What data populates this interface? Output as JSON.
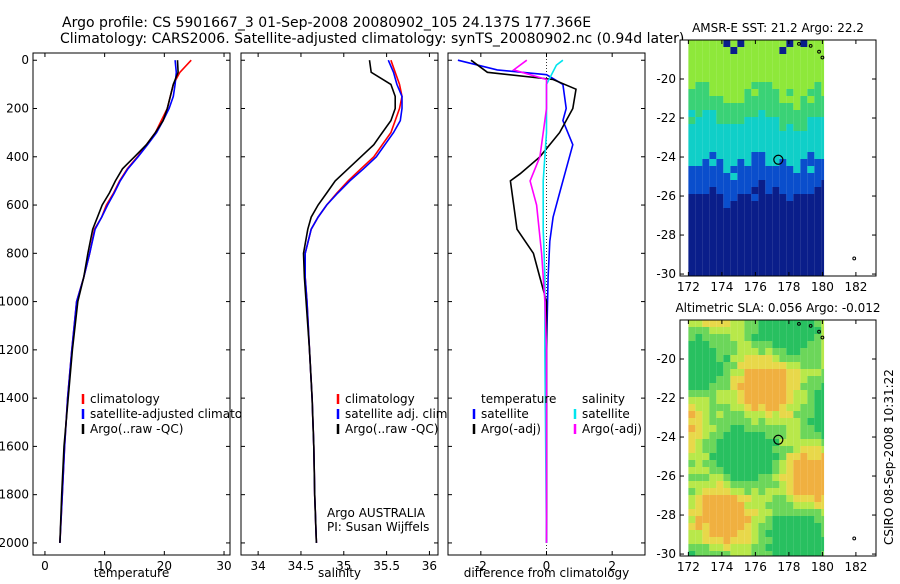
{
  "header": {
    "line1": "Argo profile: CS 5901667_3 01-Sep-2008 20080902_105 24.137S 177.366E",
    "line2": "Climatology: CARS2006. Satellite-adjusted climatology: synTS_20080902.nc (0.94d later)"
  },
  "side_label": "CSIRO 08-Sep-2008 10:31:22",
  "colors": {
    "climatology": "#ff0000",
    "satellite": "#0000ff",
    "argo": "#000000",
    "salinity_satellite": "#00e5ee",
    "salinity_argo": "#ff00ff",
    "float_marker": "#000000"
  },
  "chart_data": [
    {
      "type": "line",
      "xlabel": "temperature",
      "ylabel": "",
      "xlim": [
        -2,
        31
      ],
      "ylim": [
        2050,
        -30
      ],
      "xticks": [
        0,
        10,
        20,
        30
      ],
      "yticks": [
        0,
        200,
        400,
        600,
        800,
        1000,
        1200,
        1400,
        1600,
        1800,
        2000
      ],
      "legend": [
        "climatology",
        "satellite-adjusted climatology",
        "Argo(..raw -QC)"
      ],
      "legend_position": "lower-left",
      "series": [
        {
          "name": "climatology",
          "color": "#ff0000",
          "points": [
            [
              24.5,
              0
            ],
            [
              22.6,
              50
            ],
            [
              21.5,
              100
            ],
            [
              21.0,
              150
            ],
            [
              20.5,
              200
            ],
            [
              19.5,
              250
            ],
            [
              18.5,
              300
            ],
            [
              17.0,
              350
            ],
            [
              15.5,
              400
            ],
            [
              13.8,
              450
            ],
            [
              12.5,
              500
            ],
            [
              11.5,
              550
            ],
            [
              10.3,
              600
            ],
            [
              9.5,
              650
            ],
            [
              8.3,
              700
            ],
            [
              7.5,
              800
            ],
            [
              6.5,
              900
            ],
            [
              5.3,
              1000
            ],
            [
              4.5,
              1200
            ],
            [
              3.8,
              1400
            ],
            [
              3.3,
              1600
            ],
            [
              2.9,
              1800
            ],
            [
              2.5,
              2000
            ]
          ]
        },
        {
          "name": "satellite-adjusted climatology",
          "color": "#0000ff",
          "points": [
            [
              21.8,
              0
            ],
            [
              22.0,
              50
            ],
            [
              21.8,
              100
            ],
            [
              21.5,
              150
            ],
            [
              20.8,
              200
            ],
            [
              19.8,
              250
            ],
            [
              18.7,
              300
            ],
            [
              17.2,
              350
            ],
            [
              15.6,
              400
            ],
            [
              13.9,
              450
            ],
            [
              12.6,
              500
            ],
            [
              11.6,
              550
            ],
            [
              10.5,
              600
            ],
            [
              9.5,
              650
            ],
            [
              8.4,
              700
            ],
            [
              7.5,
              800
            ],
            [
              6.5,
              900
            ],
            [
              5.3,
              1000
            ],
            [
              4.5,
              1200
            ],
            [
              3.8,
              1400
            ],
            [
              3.3,
              1600
            ],
            [
              2.9,
              1800
            ],
            [
              2.5,
              2000
            ]
          ]
        },
        {
          "name": "Argo(..raw -QC)",
          "color": "#000000",
          "points": [
            [
              22.2,
              0
            ],
            [
              22.3,
              50
            ],
            [
              21.5,
              100
            ],
            [
              21.0,
              150
            ],
            [
              20.5,
              200
            ],
            [
              19.8,
              250
            ],
            [
              18.5,
              300
            ],
            [
              17.0,
              350
            ],
            [
              15.0,
              400
            ],
            [
              13.0,
              450
            ],
            [
              11.8,
              500
            ],
            [
              10.8,
              550
            ],
            [
              9.6,
              600
            ],
            [
              8.8,
              650
            ],
            [
              8.0,
              700
            ],
            [
              7.2,
              800
            ],
            [
              6.5,
              900
            ],
            [
              5.5,
              1000
            ],
            [
              4.6,
              1200
            ],
            [
              3.9,
              1400
            ],
            [
              3.2,
              1600
            ],
            [
              2.8,
              1800
            ],
            [
              2.5,
              2000
            ]
          ]
        }
      ]
    },
    {
      "type": "line",
      "xlabel": "salinity",
      "xlim": [
        33.8,
        36.1
      ],
      "ylim": [
        2050,
        -30
      ],
      "xticks": [
        34,
        34.5,
        35,
        35.5,
        36
      ],
      "legend": [
        "climatology",
        "satellite adj. clim.",
        "Argo(..raw -QC)"
      ],
      "legend_position": "lower-right",
      "annotation": [
        "Argo AUSTRALIA",
        "PI: Susan Wijffels"
      ],
      "series": [
        {
          "name": "climatology",
          "color": "#ff0000",
          "points": [
            [
              35.55,
              0
            ],
            [
              35.6,
              50
            ],
            [
              35.65,
              100
            ],
            [
              35.68,
              150
            ],
            [
              35.65,
              200
            ],
            [
              35.6,
              250
            ],
            [
              35.55,
              300
            ],
            [
              35.45,
              350
            ],
            [
              35.35,
              400
            ],
            [
              35.2,
              450
            ],
            [
              35.05,
              500
            ],
            [
              34.92,
              550
            ],
            [
              34.8,
              600
            ],
            [
              34.7,
              650
            ],
            [
              34.62,
              700
            ],
            [
              34.55,
              800
            ],
            [
              34.55,
              900
            ],
            [
              34.57,
              1000
            ],
            [
              34.6,
              1200
            ],
            [
              34.63,
              1400
            ],
            [
              34.65,
              1600
            ],
            [
              34.66,
              1800
            ],
            [
              34.68,
              2000
            ]
          ]
        },
        {
          "name": "satellite adj. clim.",
          "color": "#0000ff",
          "points": [
            [
              35.52,
              0
            ],
            [
              35.58,
              50
            ],
            [
              35.62,
              100
            ],
            [
              35.68,
              150
            ],
            [
              35.68,
              200
            ],
            [
              35.66,
              250
            ],
            [
              35.58,
              300
            ],
            [
              35.48,
              350
            ],
            [
              35.38,
              400
            ],
            [
              35.23,
              450
            ],
            [
              35.07,
              500
            ],
            [
              34.93,
              550
            ],
            [
              34.8,
              600
            ],
            [
              34.7,
              650
            ],
            [
              34.62,
              700
            ],
            [
              34.55,
              800
            ],
            [
              34.55,
              900
            ],
            [
              34.57,
              1000
            ],
            [
              34.6,
              1200
            ],
            [
              34.63,
              1400
            ],
            [
              34.65,
              1600
            ],
            [
              34.66,
              1800
            ],
            [
              34.68,
              2000
            ]
          ]
        },
        {
          "name": "Argo(..raw -QC)",
          "color": "#000000",
          "points": [
            [
              35.3,
              0
            ],
            [
              35.32,
              50
            ],
            [
              35.55,
              100
            ],
            [
              35.6,
              150
            ],
            [
              35.6,
              200
            ],
            [
              35.55,
              250
            ],
            [
              35.45,
              300
            ],
            [
              35.35,
              350
            ],
            [
              35.2,
              400
            ],
            [
              35.05,
              450
            ],
            [
              34.9,
              500
            ],
            [
              34.8,
              550
            ],
            [
              34.7,
              600
            ],
            [
              34.62,
              650
            ],
            [
              34.58,
              700
            ],
            [
              34.53,
              800
            ],
            [
              34.54,
              900
            ],
            [
              34.56,
              1000
            ],
            [
              34.6,
              1200
            ],
            [
              34.63,
              1400
            ],
            [
              34.65,
              1600
            ],
            [
              34.66,
              1800
            ],
            [
              34.68,
              2000
            ]
          ]
        }
      ]
    },
    {
      "type": "line",
      "xlabel": "difference from climatology",
      "xlim": [
        -3,
        3
      ],
      "ylim": [
        2050,
        -30
      ],
      "xticks": [
        -2,
        0,
        2
      ],
      "zero_line": true,
      "legend_groups": [
        {
          "title": "temperature",
          "items": [
            "satellite",
            "Argo(-adj)"
          ]
        },
        {
          "title": "salinity",
          "items": [
            "satellite",
            "Argo(-adj)"
          ]
        }
      ],
      "series": [
        {
          "name": "temperature satellite",
          "color": "#0000ff",
          "points": [
            [
              -2.7,
              0
            ],
            [
              -1.5,
              40
            ],
            [
              0.0,
              60
            ],
            [
              0.5,
              100
            ],
            [
              0.6,
              200
            ],
            [
              0.5,
              250
            ],
            [
              0.8,
              350
            ],
            [
              0.6,
              450
            ],
            [
              0.4,
              550
            ],
            [
              0.2,
              650
            ],
            [
              0.1,
              750
            ],
            [
              0.05,
              900
            ],
            [
              0.0,
              1200
            ],
            [
              0.0,
              2000
            ]
          ]
        },
        {
          "name": "temperature Argo(-adj)",
          "color": "#000000",
          "points": [
            [
              -2.3,
              0
            ],
            [
              -1.8,
              50
            ],
            [
              0.2,
              80
            ],
            [
              0.9,
              120
            ],
            [
              0.8,
              200
            ],
            [
              0.4,
              300
            ],
            [
              -0.2,
              400
            ],
            [
              -0.8,
              470
            ],
            [
              -1.1,
              500
            ],
            [
              -1.0,
              600
            ],
            [
              -0.9,
              700
            ],
            [
              -0.4,
              800
            ],
            [
              -0.2,
              900
            ],
            [
              0.0,
              1000
            ],
            [
              0.0,
              2000
            ]
          ]
        },
        {
          "name": "salinity satellite",
          "color": "#00e5ee",
          "points": [
            [
              0.5,
              0
            ],
            [
              0.3,
              20
            ],
            [
              0.0,
              100
            ],
            [
              0.0,
              300
            ],
            [
              -0.1,
              500
            ],
            [
              -0.1,
              700
            ],
            [
              -0.05,
              900
            ],
            [
              -0.05,
              1200
            ],
            [
              0.0,
              2000
            ]
          ]
        },
        {
          "name": "salinity Argo(-adj)",
          "color": "#ff00ff",
          "points": [
            [
              -0.6,
              0
            ],
            [
              -1.0,
              40
            ],
            [
              0.0,
              80
            ],
            [
              0.0,
              200
            ],
            [
              -0.2,
              400
            ],
            [
              -0.5,
              500
            ],
            [
              -0.3,
              600
            ],
            [
              -0.15,
              800
            ],
            [
              -0.05,
              1000
            ],
            [
              0.0,
              1200
            ],
            [
              0.0,
              2000
            ]
          ]
        }
      ]
    },
    {
      "type": "heatmap",
      "title": "AMSR-E SST: 21.2  Argo: 22.2",
      "xlim": [
        171.5,
        183.2
      ],
      "ylim": [
        -30.1,
        -18.0
      ],
      "xticks": [
        172,
        174,
        176,
        178,
        180,
        182
      ],
      "yticks": [
        -20,
        -22,
        -24,
        -26,
        -28,
        -30
      ],
      "float_position": {
        "lon": 177.37,
        "lat": -24.14
      },
      "bands": [
        {
          "from": -18.0,
          "to": -20.8,
          "color": "#8ee83a"
        },
        {
          "from": -20.8,
          "to": -22.2,
          "color": "#3ad276"
        },
        {
          "from": -22.2,
          "to": -24.4,
          "color": "#10cfc8"
        },
        {
          "from": -24.4,
          "to": -26.0,
          "color": "#0a4ecc"
        },
        {
          "from": -26.0,
          "to": -30.1,
          "color": "#0a1e8a"
        }
      ]
    },
    {
      "type": "heatmap",
      "title": "Altimetric SLA: 0.056  Argo: -0.012",
      "xlim": [
        171.5,
        183.2
      ],
      "ylim": [
        -30.1,
        -18.0
      ],
      "xticks": [
        172,
        174,
        176,
        178,
        180,
        182
      ],
      "yticks": [
        -20,
        -22,
        -24,
        -26,
        -28,
        -30
      ],
      "float_position": {
        "lon": 177.37,
        "lat": -24.14
      }
    }
  ]
}
